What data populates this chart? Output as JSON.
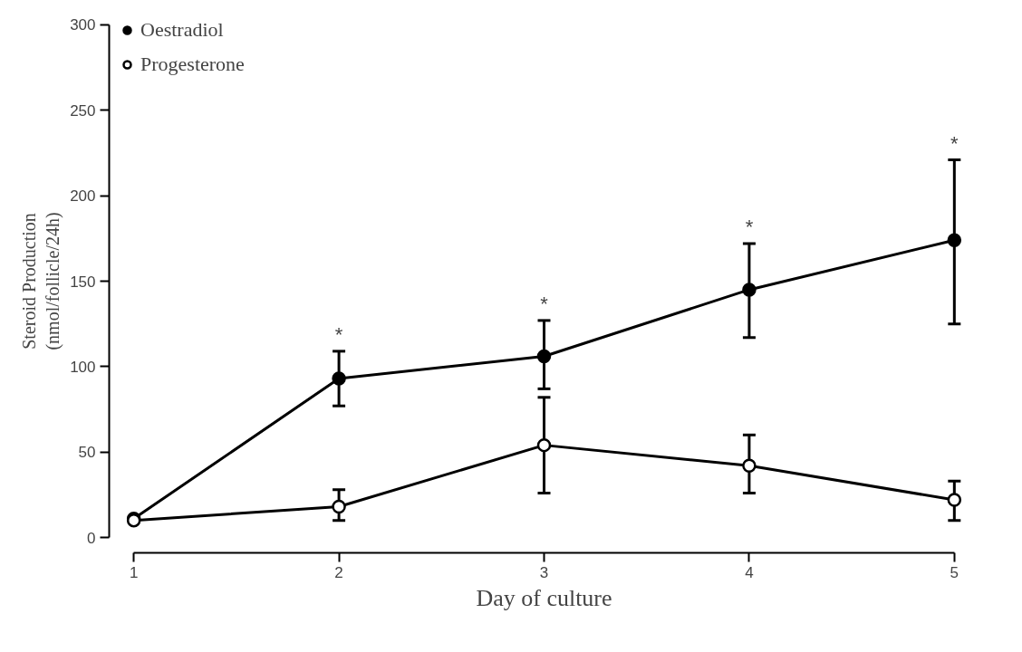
{
  "chart_data": {
    "type": "line",
    "xlabel": "Day of culture",
    "ylabel": "Steroid Production\n(nmol/follicle/24h)",
    "x": [
      1,
      2,
      3,
      4,
      5
    ],
    "series": [
      {
        "name": "Oestradiol",
        "color": "#000000",
        "marker": "circle",
        "values": [
          11,
          93,
          106,
          145,
          174
        ],
        "errors": [
          null,
          [
            77,
            109
          ],
          [
            87,
            127
          ],
          [
            117,
            172
          ],
          [
            125,
            221
          ]
        ]
      },
      {
        "name": "Progesterone",
        "color": "#000000",
        "marker": "circle_open",
        "values": [
          10,
          18,
          54,
          42,
          22
        ],
        "errors": [
          null,
          [
            10,
            28
          ],
          [
            26,
            82
          ],
          [
            26,
            60
          ],
          [
            10,
            33
          ]
        ]
      }
    ],
    "annotations": [
      {
        "text": "*",
        "x": 2,
        "y": 109
      },
      {
        "text": "*",
        "x": 3,
        "y": 127
      },
      {
        "text": "*",
        "x": 4,
        "y": 172
      },
      {
        "text": "*",
        "x": 5,
        "y": 221
      }
    ],
    "xlim": [
      1,
      5
    ],
    "xticks": [
      1,
      2,
      3,
      4,
      5
    ],
    "ylim": [
      0,
      300
    ],
    "yticks": [
      0,
      50,
      100,
      150,
      200,
      250,
      300
    ],
    "grid": false,
    "legend": "top left",
    "line_style": "solid"
  }
}
